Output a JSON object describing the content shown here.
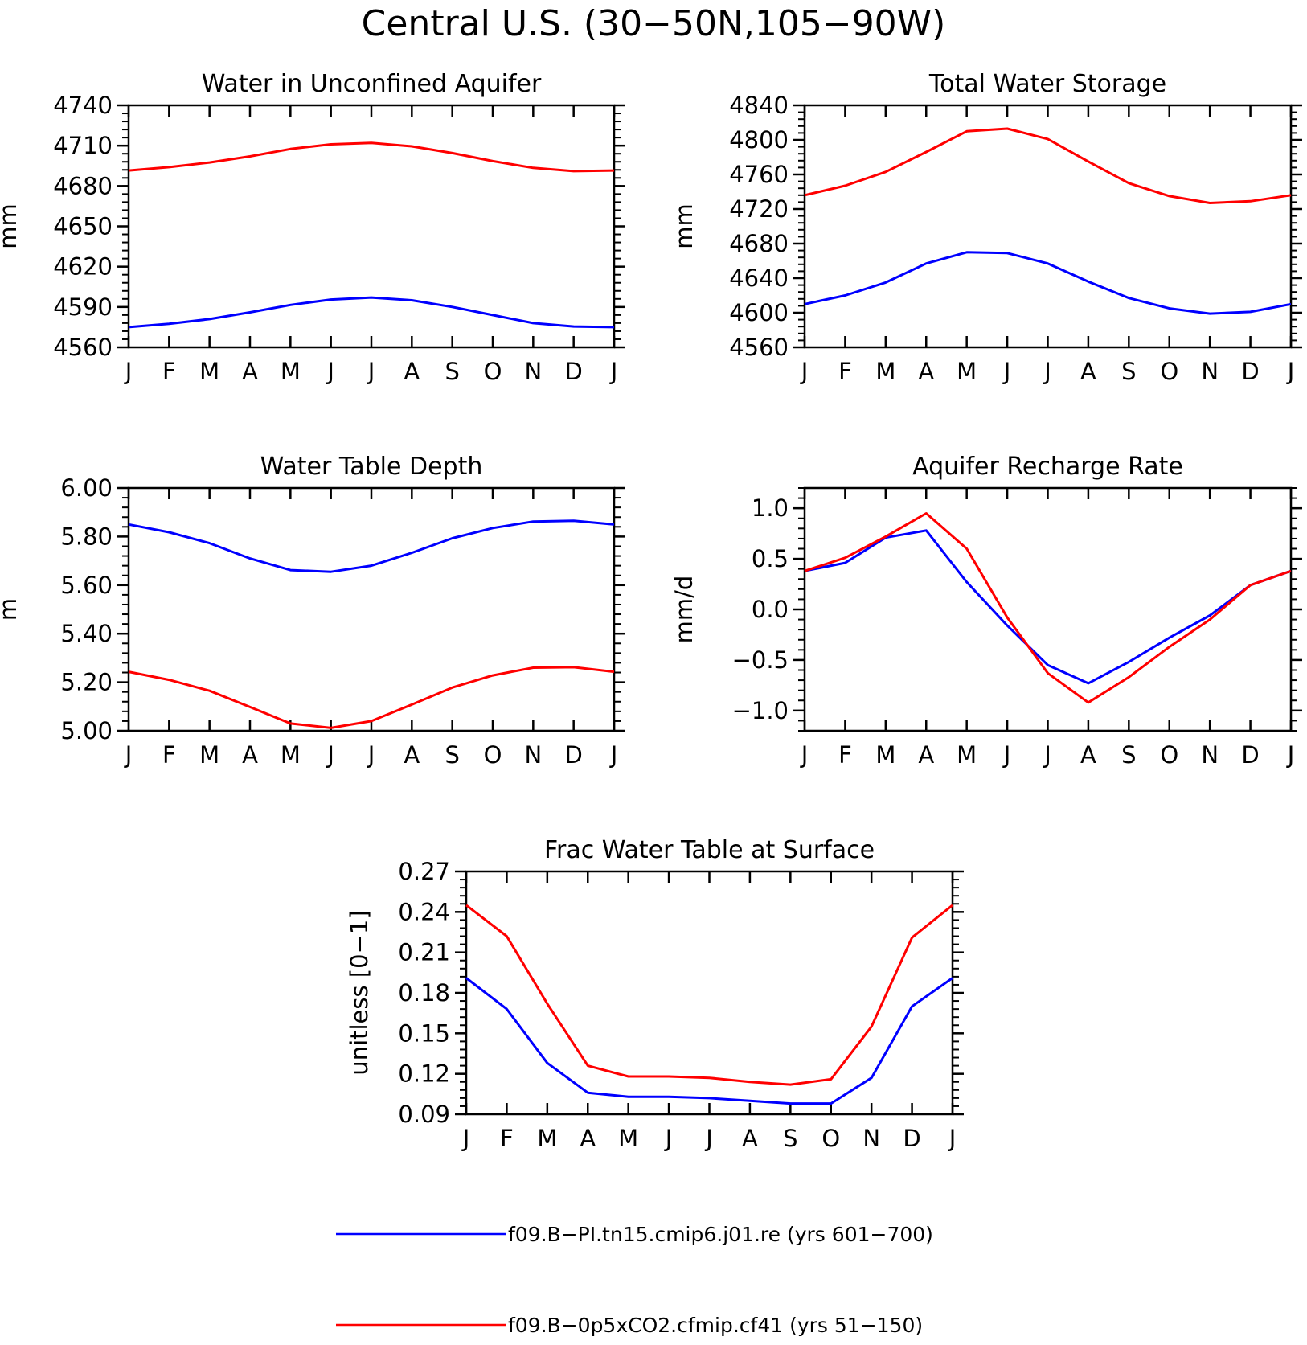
{
  "title": "Central U.S. (30−50N,105−90W)",
  "colors": {
    "blue": "#0000ff",
    "red": "#ff0000",
    "axis": "#000000"
  },
  "legend": [
    {
      "label": "f09.B−PI.tn15.cmip6.j01.re (yrs 601−700)",
      "color": "#0000ff"
    },
    {
      "label": "f09.B−0p5xCO2.cfmip.cf41 (yrs 51−150)",
      "color": "#ff0000"
    }
  ],
  "chart_data": [
    {
      "type": "line",
      "title": "Water in Unconfined Aquifer",
      "ylabel": "mm",
      "categories": [
        "J",
        "F",
        "M",
        "A",
        "M",
        "J",
        "J",
        "A",
        "S",
        "O",
        "N",
        "D",
        "J"
      ],
      "ylim": [
        4560,
        4740
      ],
      "yticks": [
        "4740",
        "4710",
        "4680",
        "4650",
        "4620",
        "4590",
        "4560"
      ],
      "series": [
        {
          "name": "f09.B−PI.tn15.cmip6.j01.re (yrs 601−700)",
          "color": "#0000ff",
          "values": [
            4575,
            4577.5,
            4581,
            4586,
            4591.5,
            4595.5,
            4597,
            4595,
            4590,
            4584,
            4578,
            4575.5,
            4575
          ]
        },
        {
          "name": "f09.B−0p5xCO2.cfmip.cf41 (yrs 51−150)",
          "color": "#ff0000",
          "values": [
            4691.5,
            4694,
            4697.5,
            4702,
            4707.5,
            4711,
            4712,
            4709.5,
            4704.5,
            4698.5,
            4693.5,
            4691,
            4691.5
          ]
        }
      ]
    },
    {
      "type": "line",
      "title": "Total Water Storage",
      "ylabel": "mm",
      "categories": [
        "J",
        "F",
        "M",
        "A",
        "M",
        "J",
        "J",
        "A",
        "S",
        "O",
        "N",
        "D",
        "J"
      ],
      "ylim": [
        4560,
        4840
      ],
      "yticks": [
        "4840",
        "4800",
        "4760",
        "4720",
        "4680",
        "4640",
        "4600",
        "4560"
      ],
      "series": [
        {
          "name": "f09.B−PI.tn15.cmip6.j01.re (yrs 601−700)",
          "color": "#0000ff",
          "values": [
            4610,
            4620,
            4635,
            4657,
            4670,
            4669,
            4657,
            4636,
            4617,
            4605,
            4599,
            4601,
            4610
          ]
        },
        {
          "name": "f09.B−0p5xCO2.cfmip.cf41 (yrs 51−150)",
          "color": "#ff0000",
          "values": [
            4736,
            4747,
            4763,
            4786,
            4810,
            4813,
            4801,
            4775,
            4750,
            4735,
            4727,
            4729,
            4736
          ]
        }
      ]
    },
    {
      "type": "line",
      "title": "Water Table Depth",
      "ylabel": "m",
      "categories": [
        "J",
        "F",
        "M",
        "A",
        "M",
        "J",
        "J",
        "A",
        "S",
        "O",
        "N",
        "D",
        "J"
      ],
      "ylim": [
        5.0,
        6.0
      ],
      "yticks": [
        "6.00",
        "5.80",
        "5.60",
        "5.40",
        "5.20",
        "5.00"
      ],
      "series": [
        {
          "name": "f09.B−PI.tn15.cmip6.j01.re (yrs 601−700)",
          "color": "#0000ff",
          "values": [
            5.85,
            5.818,
            5.773,
            5.71,
            5.662,
            5.655,
            5.68,
            5.733,
            5.793,
            5.835,
            5.862,
            5.865,
            5.85
          ]
        },
        {
          "name": "f09.B−0p5xCO2.cfmip.cf41 (yrs 51−150)",
          "color": "#ff0000",
          "values": [
            5.243,
            5.21,
            5.165,
            5.098,
            5.03,
            5.012,
            5.04,
            5.108,
            5.178,
            5.228,
            5.26,
            5.262,
            5.243
          ]
        }
      ]
    },
    {
      "type": "line",
      "title": "Aquifer Recharge Rate",
      "ylabel": "mm/d",
      "categories": [
        "J",
        "F",
        "M",
        "A",
        "M",
        "J",
        "J",
        "A",
        "S",
        "O",
        "N",
        "D",
        "J"
      ],
      "ylim": [
        -1.2,
        1.2
      ],
      "yticks": [
        "1.0",
        "0.5",
        "0.0",
        "−0.5",
        "−1.0"
      ],
      "ytick_values": [
        1.0,
        0.5,
        0.0,
        -0.5,
        -1.0
      ],
      "series": [
        {
          "name": "f09.B−PI.tn15.cmip6.j01.re (yrs 601−700)",
          "color": "#0000ff",
          "values": [
            0.38,
            0.46,
            0.71,
            0.78,
            0.27,
            -0.16,
            -0.55,
            -0.73,
            -0.52,
            -0.28,
            -0.06,
            0.24,
            0.38
          ]
        },
        {
          "name": "f09.B−0p5xCO2.cfmip.cf41 (yrs 51−150)",
          "color": "#ff0000",
          "values": [
            0.38,
            0.51,
            0.72,
            0.95,
            0.6,
            -0.08,
            -0.63,
            -0.92,
            -0.67,
            -0.37,
            -0.1,
            0.24,
            0.38
          ]
        }
      ]
    },
    {
      "type": "line",
      "title": "Frac Water Table at Surface",
      "ylabel": "unitless [0−1]",
      "categories": [
        "J",
        "F",
        "M",
        "A",
        "M",
        "J",
        "J",
        "A",
        "S",
        "O",
        "N",
        "D",
        "J"
      ],
      "ylim": [
        0.09,
        0.27
      ],
      "yticks": [
        "0.27",
        "0.24",
        "0.21",
        "0.18",
        "0.15",
        "0.12",
        "0.09"
      ],
      "series": [
        {
          "name": "f09.B−PI.tn15.cmip6.j01.re (yrs 601−700)",
          "color": "#0000ff",
          "values": [
            0.191,
            0.168,
            0.128,
            0.106,
            0.103,
            0.103,
            0.102,
            0.1,
            0.098,
            0.098,
            0.117,
            0.17,
            0.191
          ]
        },
        {
          "name": "f09.B−0p5xCO2.cfmip.cf41 (yrs 51−150)",
          "color": "#ff0000",
          "values": [
            0.245,
            0.222,
            0.172,
            0.126,
            0.118,
            0.118,
            0.117,
            0.114,
            0.112,
            0.116,
            0.155,
            0.221,
            0.245
          ]
        }
      ]
    }
  ]
}
